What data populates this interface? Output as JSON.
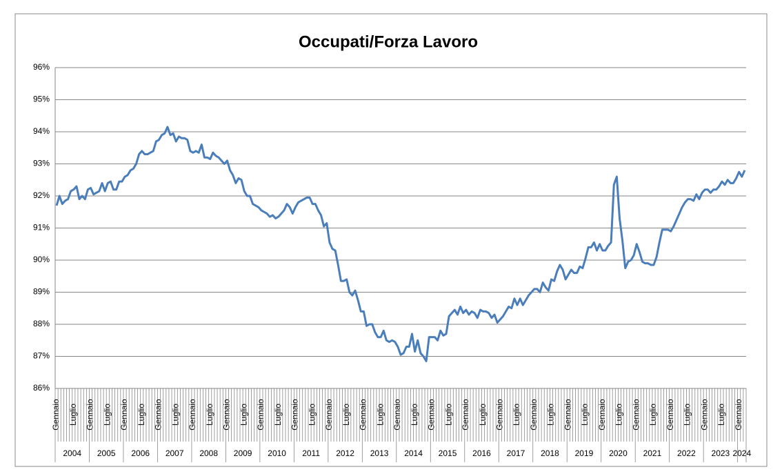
{
  "chart_data": {
    "type": "line",
    "title": "Occupati/Forza Lavoro",
    "color": "#4a7ebb",
    "grid": true,
    "ylim": [
      86,
      96
    ],
    "yticks": [
      {
        "value": 86,
        "label": "86%"
      },
      {
        "value": 87,
        "label": "87%"
      },
      {
        "value": 88,
        "label": "88%"
      },
      {
        "value": 89,
        "label": "89%"
      },
      {
        "value": 90,
        "label": "90%"
      },
      {
        "value": 91,
        "label": "91%"
      },
      {
        "value": 92,
        "label": "92%"
      },
      {
        "value": 93,
        "label": "93%"
      },
      {
        "value": 94,
        "label": "94%"
      },
      {
        "value": 95,
        "label": "95%"
      },
      {
        "value": 96,
        "label": "96%"
      }
    ],
    "years": [
      "2004",
      "2005",
      "2006",
      "2007",
      "2008",
      "2009",
      "2010",
      "2011",
      "2012",
      "2013",
      "2014",
      "2015",
      "2016",
      "2017",
      "2018",
      "2019",
      "2020",
      "2021",
      "2022",
      "2023",
      "2024"
    ],
    "categories": [
      "Gennaio",
      null,
      null,
      null,
      null,
      null,
      "Luglio",
      null,
      null,
      null,
      null,
      null,
      "Gennaio",
      null,
      null,
      null,
      null,
      null,
      "Luglio",
      null,
      null,
      null,
      null,
      null,
      "Gennaio",
      null,
      null,
      null,
      null,
      null,
      "Luglio",
      null,
      null,
      null,
      null,
      null,
      "Gennaio",
      null,
      null,
      null,
      null,
      null,
      "Luglio",
      null,
      null,
      null,
      null,
      null,
      "Gennaio",
      null,
      null,
      null,
      null,
      null,
      "Luglio",
      null,
      null,
      null,
      null,
      null,
      "Gennaio",
      null,
      null,
      null,
      null,
      null,
      "Luglio",
      null,
      null,
      null,
      null,
      null,
      "Gennaio",
      null,
      null,
      null,
      null,
      null,
      "Luglio",
      null,
      null,
      null,
      null,
      null,
      "Gennaio",
      null,
      null,
      null,
      null,
      null,
      "Luglio",
      null,
      null,
      null,
      null,
      null,
      "Gennaio",
      null,
      null,
      null,
      null,
      null,
      "Luglio",
      null,
      null,
      null,
      null,
      null,
      "Gennaio",
      null,
      null,
      null,
      null,
      null,
      "Luglio",
      null,
      null,
      null,
      null,
      null,
      "Gennaio",
      null,
      null,
      null,
      null,
      null,
      "Luglio",
      null,
      null,
      null,
      null,
      null,
      "Gennaio",
      null,
      null,
      null,
      null,
      null,
      "Luglio",
      null,
      null,
      null,
      null,
      null,
      "Gennaio",
      null,
      null,
      null,
      null,
      null,
      "Luglio",
      null,
      null,
      null,
      null,
      null,
      "Gennaio",
      null,
      null,
      null,
      null,
      null,
      "Luglio",
      null,
      null,
      null,
      null,
      null,
      "Gennaio",
      null,
      null,
      null,
      null,
      null,
      "Luglio",
      null,
      null,
      null,
      null,
      null,
      "Gennaio",
      null,
      null,
      null,
      null,
      null,
      "Luglio",
      null,
      null,
      null,
      null,
      null,
      "Gennaio",
      null,
      null,
      null,
      null,
      null,
      "Luglio",
      null,
      null,
      null,
      null,
      null,
      "Gennaio",
      null,
      null,
      null,
      null,
      null,
      "Luglio",
      null,
      null,
      null,
      null,
      null,
      "Gennaio",
      null,
      null,
      null,
      null,
      null,
      "Luglio",
      null,
      null,
      null,
      null,
      null,
      "Gennaio",
      null,
      null,
      null,
      null,
      null,
      "Luglio",
      null,
      null,
      null,
      null,
      null,
      "Gennaio",
      null,
      null
    ],
    "values": [
      91.7,
      92.0,
      91.75,
      91.85,
      91.9,
      92.15,
      92.2,
      92.3,
      91.9,
      92.0,
      91.9,
      92.2,
      92.25,
      92.05,
      92.1,
      92.15,
      92.4,
      92.15,
      92.4,
      92.45,
      92.2,
      92.2,
      92.45,
      92.45,
      92.6,
      92.65,
      92.8,
      92.85,
      93.0,
      93.3,
      93.4,
      93.3,
      93.3,
      93.35,
      93.4,
      93.7,
      93.75,
      93.9,
      93.95,
      94.15,
      93.9,
      93.95,
      93.7,
      93.85,
      93.8,
      93.8,
      93.75,
      93.4,
      93.35,
      93.4,
      93.35,
      93.6,
      93.2,
      93.2,
      93.15,
      93.35,
      93.25,
      93.2,
      93.1,
      93.0,
      93.1,
      92.8,
      92.65,
      92.4,
      92.55,
      92.5,
      92.15,
      92.0,
      92.0,
      91.75,
      91.7,
      91.65,
      91.55,
      91.5,
      91.45,
      91.35,
      91.4,
      91.3,
      91.35,
      91.45,
      91.55,
      91.75,
      91.65,
      91.45,
      91.65,
      91.8,
      91.85,
      91.9,
      91.95,
      91.95,
      91.75,
      91.75,
      91.55,
      91.4,
      91.05,
      91.15,
      90.55,
      90.35,
      90.3,
      89.85,
      89.35,
      89.35,
      89.4,
      89.0,
      88.9,
      89.05,
      88.75,
      88.4,
      88.4,
      87.95,
      88.0,
      88.0,
      87.75,
      87.6,
      87.6,
      87.8,
      87.5,
      87.45,
      87.5,
      87.45,
      87.3,
      87.05,
      87.1,
      87.3,
      87.3,
      87.7,
      87.15,
      87.5,
      87.1,
      87.0,
      86.85,
      87.6,
      87.6,
      87.6,
      87.5,
      87.8,
      87.65,
      87.7,
      88.25,
      88.35,
      88.45,
      88.3,
      88.55,
      88.35,
      88.45,
      88.3,
      88.4,
      88.35,
      88.2,
      88.45,
      88.4,
      88.4,
      88.35,
      88.2,
      88.3,
      88.05,
      88.15,
      88.25,
      88.4,
      88.55,
      88.5,
      88.8,
      88.6,
      88.8,
      88.6,
      88.75,
      88.9,
      89.0,
      89.1,
      89.1,
      89.0,
      89.3,
      89.15,
      89.05,
      89.4,
      89.35,
      89.65,
      89.85,
      89.7,
      89.4,
      89.55,
      89.7,
      89.6,
      89.6,
      89.8,
      89.75,
      90.05,
      90.4,
      90.4,
      90.55,
      90.3,
      90.5,
      90.3,
      90.3,
      90.45,
      90.55,
      92.35,
      92.6,
      91.3,
      90.6,
      89.75,
      89.95,
      90.0,
      90.15,
      90.5,
      90.25,
      89.95,
      89.9,
      89.9,
      89.85,
      89.85,
      90.1,
      90.55,
      90.95,
      90.95,
      90.95,
      90.9,
      91.05,
      91.25,
      91.45,
      91.65,
      91.8,
      91.9,
      91.9,
      91.85,
      92.05,
      91.9,
      92.1,
      92.2,
      92.2,
      92.1,
      92.2,
      92.2,
      92.3,
      92.45,
      92.35,
      92.5,
      92.4,
      92.4,
      92.55,
      92.75,
      92.6,
      92.8
    ]
  }
}
